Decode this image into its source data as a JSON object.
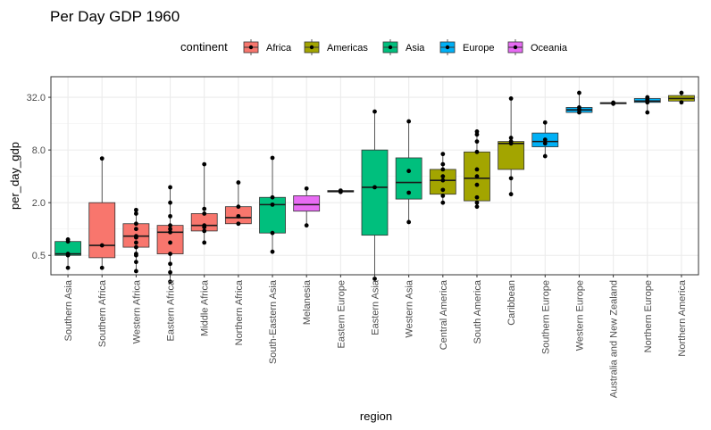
{
  "chart_data": {
    "type": "box",
    "title": "Per Day GDP 1960",
    "xlabel": "region",
    "ylabel": "per_day_gdp",
    "y_scale": "log2",
    "ylim": [
      0.3,
      55
    ],
    "y_ticks": [
      0.5,
      2,
      8,
      32
    ],
    "y_tick_labels": [
      "0.5",
      "2.0",
      "8.0",
      "32.0"
    ],
    "grid": true,
    "legend": {
      "title": "continent",
      "position": "top",
      "entries": [
        {
          "name": "Africa",
          "color": "#F8766D"
        },
        {
          "name": "Americas",
          "color": "#A3A500"
        },
        {
          "name": "Asia",
          "color": "#00BF7D"
        },
        {
          "name": "Europe",
          "color": "#00B0F6"
        },
        {
          "name": "Oceania",
          "color": "#E76BF3"
        }
      ]
    },
    "categories": [
      "Southern Asia",
      "Southern Africa",
      "Western Africa",
      "Eastern Africa",
      "Middle Africa",
      "Northern Africa",
      "South-Eastern Asia",
      "Melanesia",
      "Eastern Europe",
      "Eastern Asia",
      "Western Asia",
      "Central America",
      "South America",
      "Caribbean",
      "Southern Europe",
      "Western Europe",
      "Australia and New Zealand",
      "Northern Europe",
      "Northern America"
    ],
    "boxes": [
      {
        "region": "Southern Asia",
        "continent": "Asia",
        "min": 0.36,
        "q1": 0.5,
        "median": 0.52,
        "q3": 0.72,
        "max": 0.76,
        "points": [
          0.36,
          0.5,
          0.52,
          0.72,
          0.76
        ]
      },
      {
        "region": "Southern Africa",
        "continent": "Africa",
        "min": 0.36,
        "q1": 0.47,
        "median": 0.65,
        "q3": 2.0,
        "max": 6.4,
        "points": [
          0.36,
          0.65,
          6.4
        ]
      },
      {
        "region": "Western Africa",
        "continent": "Africa",
        "min": 0.33,
        "q1": 0.62,
        "median": 0.83,
        "q3": 1.15,
        "max": 1.65,
        "points": [
          0.33,
          0.42,
          0.5,
          0.52,
          0.62,
          0.7,
          0.8,
          0.83,
          1.0,
          1.15,
          1.5,
          1.65
        ]
      },
      {
        "region": "Eastern Africa",
        "continent": "Africa",
        "min": 0.25,
        "q1": 0.52,
        "median": 0.92,
        "q3": 1.1,
        "max": 3.0,
        "points": [
          0.25,
          0.32,
          0.4,
          0.52,
          0.7,
          0.92,
          1.0,
          1.1,
          1.4,
          2.0,
          3.0
        ]
      },
      {
        "region": "Middle Africa",
        "continent": "Africa",
        "min": 0.7,
        "q1": 0.95,
        "median": 1.1,
        "q3": 1.5,
        "max": 5.5,
        "points": [
          0.7,
          0.95,
          1.05,
          1.1,
          1.5,
          1.7,
          5.5
        ]
      },
      {
        "region": "Northern Africa",
        "continent": "Africa",
        "min": 1.15,
        "q1": 1.15,
        "median": 1.35,
        "q3": 1.8,
        "max": 3.4,
        "points": [
          1.15,
          1.4,
          1.8,
          3.4
        ]
      },
      {
        "region": "South-Eastern Asia",
        "continent": "Asia",
        "min": 0.55,
        "q1": 0.9,
        "median": 1.9,
        "q3": 2.3,
        "max": 6.5,
        "points": [
          0.55,
          0.9,
          1.9,
          2.3,
          6.5
        ]
      },
      {
        "region": "Melanesia",
        "continent": "Oceania",
        "min": 1.1,
        "q1": 1.6,
        "median": 1.9,
        "q3": 2.4,
        "max": 2.9,
        "points": [
          1.1,
          2.9
        ]
      },
      {
        "region": "Eastern Europe",
        "continent": "Europe",
        "min": 2.65,
        "q1": 2.65,
        "median": 2.7,
        "q3": 2.75,
        "max": 2.75,
        "points": [
          2.65,
          2.75
        ]
      },
      {
        "region": "Eastern Asia",
        "continent": "Asia",
        "min": 0.27,
        "q1": 0.85,
        "median": 3.0,
        "q3": 8.0,
        "max": 22.0,
        "points": [
          0.27,
          3.0,
          22.0
        ]
      },
      {
        "region": "Western Asia",
        "continent": "Asia",
        "min": 1.2,
        "q1": 2.2,
        "median": 3.4,
        "q3": 6.5,
        "max": 17.0,
        "points": [
          1.2,
          2.6,
          4.6,
          17.0
        ]
      },
      {
        "region": "Central America",
        "continent": "Americas",
        "min": 2.0,
        "q1": 2.5,
        "median": 3.6,
        "q3": 4.8,
        "max": 7.2,
        "points": [
          2.0,
          2.4,
          2.8,
          3.6,
          4.0,
          4.8,
          5.5,
          7.2
        ]
      },
      {
        "region": "South America",
        "continent": "Americas",
        "min": 1.8,
        "q1": 2.1,
        "median": 3.8,
        "q3": 7.6,
        "max": 13.0,
        "points": [
          1.8,
          2.0,
          2.3,
          3.2,
          4.0,
          4.8,
          7.6,
          10.0,
          12.0,
          13.0
        ]
      },
      {
        "region": "Caribbean",
        "continent": "Americas",
        "min": 2.5,
        "q1": 4.8,
        "median": 9.5,
        "q3": 10.0,
        "max": 31.0,
        "points": [
          2.5,
          3.8,
          9.5,
          10.0,
          11.0,
          31.0
        ]
      },
      {
        "region": "Southern Europe",
        "continent": "Europe",
        "min": 6.8,
        "q1": 8.7,
        "median": 10.0,
        "q3": 12.5,
        "max": 16.5,
        "points": [
          6.8,
          9.5,
          10.5,
          16.5
        ]
      },
      {
        "region": "Western Europe",
        "continent": "Europe",
        "min": 21.5,
        "q1": 21.5,
        "median": 23.0,
        "q3": 24.5,
        "max": 36.0,
        "points": [
          21.5,
          23.0,
          24.5,
          36.0
        ]
      },
      {
        "region": "Australia and New Zealand",
        "continent": "Oceania",
        "min": 27.0,
        "q1": 27.0,
        "median": 27.5,
        "q3": 27.8,
        "max": 27.8,
        "points": [
          27.0,
          27.8
        ]
      },
      {
        "region": "Northern Europe",
        "continent": "Europe",
        "min": 21.5,
        "q1": 28.0,
        "median": 29.0,
        "q3": 31.0,
        "max": 32.0,
        "points": [
          21.5,
          28.0,
          30.0,
          32.0
        ]
      },
      {
        "region": "Northern America",
        "continent": "Americas",
        "min": 28.0,
        "q1": 29.0,
        "median": 31.0,
        "q3": 33.5,
        "max": 36.0,
        "points": [
          28.0,
          36.0
        ]
      }
    ]
  }
}
